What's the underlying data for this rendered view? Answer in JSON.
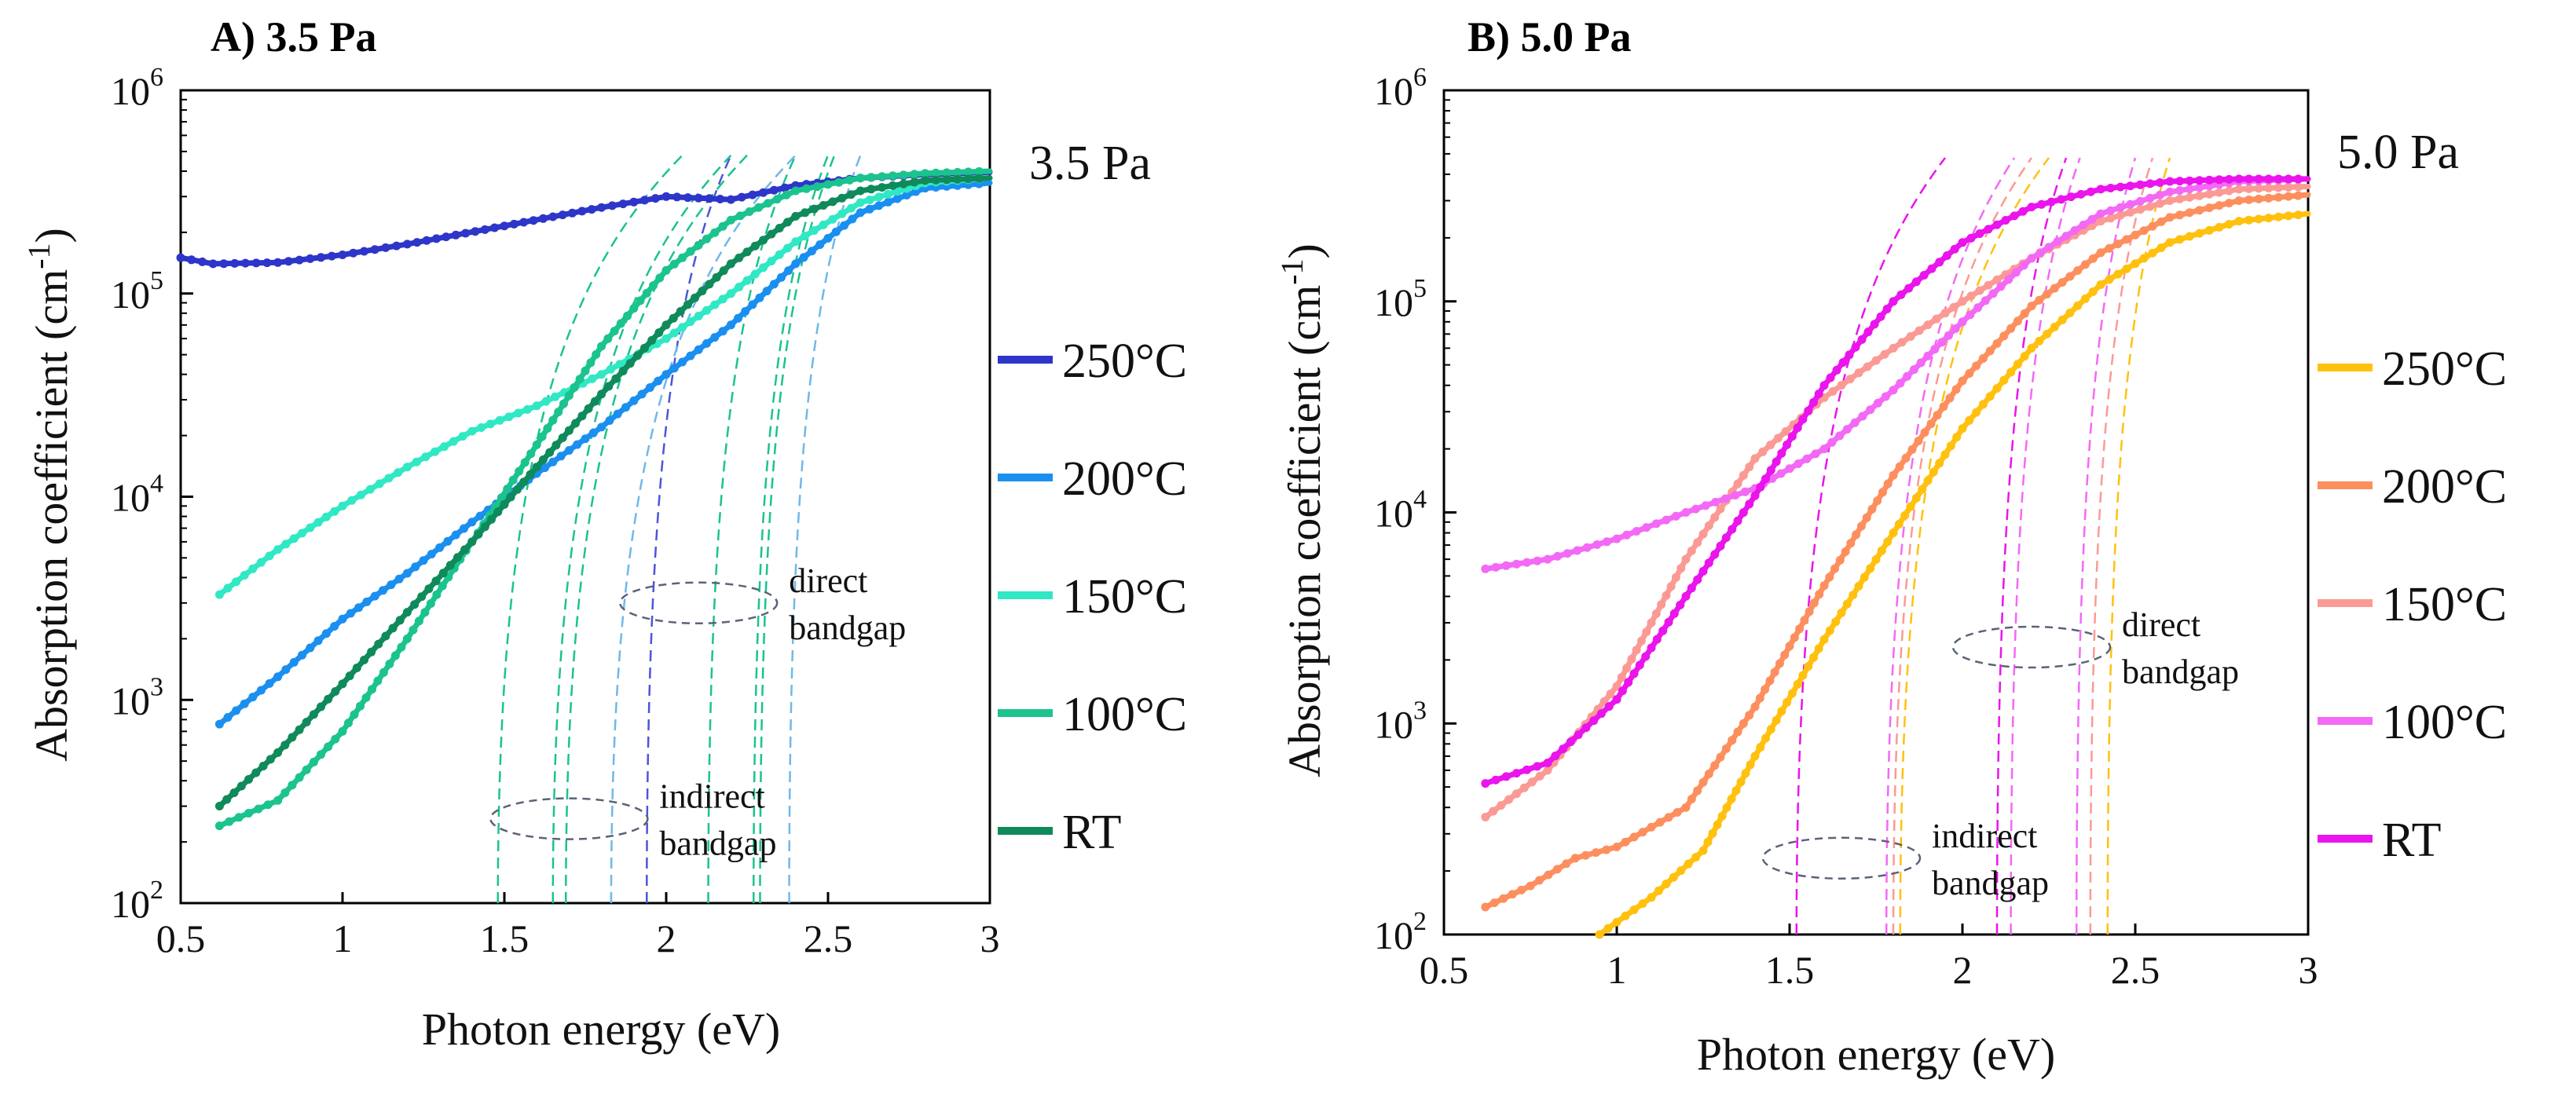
{
  "chart_data": [
    {
      "type": "line",
      "title": "A) 3.5 Pa",
      "pressure_label": "3.5 Pa",
      "xlabel": "Photon energy (eV)",
      "ylabel": "Absorption coefficient (cm",
      "ylabel_sup": "-1",
      "ylabel_close": ")",
      "xlim": [
        0.5,
        3
      ],
      "ylim": [
        100,
        1000000
      ],
      "yscale": "log",
      "x_ticks": [
        0.5,
        1,
        1.5,
        2,
        2.5,
        3
      ],
      "x_tick_labels": [
        "0.5",
        "1",
        "1.5",
        "2",
        "2.5",
        "3"
      ],
      "y_ticks": [
        100,
        1000,
        10000,
        100000,
        1000000
      ],
      "y_tick_base": "10",
      "y_tick_exps": [
        "2",
        "3",
        "4",
        "5",
        "6"
      ],
      "series": [
        {
          "name": "250°C",
          "color": "#2e35c9",
          "x": [
            0.5,
            0.6,
            0.8,
            1.0,
            1.2,
            1.5,
            1.8,
            2.0,
            2.2,
            2.4,
            2.6,
            2.8,
            3.0
          ],
          "y": [
            150000,
            140000,
            142000,
            155000,
            175000,
            215000,
            265000,
            300000,
            290000,
            340000,
            370000,
            385000,
            395000
          ]
        },
        {
          "name": "200°C",
          "color": "#1a8ff0",
          "x": [
            0.62,
            0.8,
            1.0,
            1.2,
            1.4,
            1.6,
            1.8,
            2.0,
            2.2,
            2.4,
            2.6,
            2.8,
            3.0
          ],
          "y": [
            760,
            1300,
            2500,
            4200,
            7500,
            13000,
            22000,
            40000,
            70000,
            140000,
            250000,
            330000,
            350000
          ]
        },
        {
          "name": "150°C",
          "color": "#30e8c4",
          "x": [
            0.62,
            0.8,
            1.0,
            1.2,
            1.4,
            1.6,
            1.8,
            2.0,
            2.2,
            2.4,
            2.6,
            2.8,
            3.0
          ],
          "y": [
            3300,
            5500,
            9000,
            14000,
            21000,
            28000,
            40000,
            60000,
            100000,
            180000,
            280000,
            350000,
            370000
          ]
        },
        {
          "name": "100°C",
          "color": "#1bc38e",
          "x": [
            0.62,
            0.8,
            1.0,
            1.2,
            1.4,
            1.6,
            1.8,
            2.0,
            2.2,
            2.4,
            2.6,
            2.8,
            3.0
          ],
          "y": [
            240,
            320,
            700,
            2000,
            6000,
            18000,
            55000,
            130000,
            230000,
            320000,
            370000,
            390000,
            400000
          ]
        },
        {
          "name": "RT",
          "color": "#0f8a5a",
          "x": [
            0.62,
            0.8,
            1.0,
            1.2,
            1.4,
            1.6,
            1.8,
            2.0,
            2.2,
            2.4,
            2.6,
            2.8,
            3.0
          ],
          "y": [
            300,
            550,
            1200,
            2700,
            6000,
            14000,
            32000,
            70000,
            140000,
            240000,
            320000,
            360000,
            370000
          ]
        }
      ],
      "fit_lines": [
        {
          "color": "#4b56d8",
          "x0": 1.94,
          "x1": 2.2
        },
        {
          "color": "#1bc38e",
          "x0": 2.13,
          "x1": 2.4
        },
        {
          "color": "#1bc38e",
          "x0": 2.27,
          "x1": 2.5
        },
        {
          "color": "#1bc38e",
          "x0": 2.29,
          "x1": 2.52
        },
        {
          "color": "#6fb8ea",
          "x0": 2.38,
          "x1": 2.6
        },
        {
          "color": "#1bc38e",
          "x0": 1.48,
          "x1": 2.05
        },
        {
          "color": "#1bc38e",
          "x0": 1.65,
          "x1": 2.2
        },
        {
          "color": "#1bc38e",
          "x0": 1.69,
          "x1": 2.25
        },
        {
          "color": "#6fb8ea",
          "x0": 1.83,
          "x1": 2.4
        }
      ],
      "annotations": {
        "direct": {
          "line1": "direct",
          "line2": "bandgap",
          "x": 2.1,
          "y": 3000
        },
        "indirect": {
          "line1": "indirect",
          "line2": "bandgap",
          "x": 1.7,
          "y": 260
        }
      }
    },
    {
      "type": "line",
      "title": "B) 5.0 Pa",
      "pressure_label": "5.0 Pa",
      "xlabel": "Photon energy (eV)",
      "ylabel": "Absorption coefficient (cm",
      "ylabel_sup": "-1",
      "ylabel_close": ")",
      "xlim": [
        0.5,
        3
      ],
      "ylim": [
        100,
        1000000
      ],
      "yscale": "log",
      "x_ticks": [
        0.5,
        1,
        1.5,
        2,
        2.5,
        3
      ],
      "x_tick_labels": [
        "0.5",
        "1",
        "1.5",
        "2",
        "2.5",
        "3"
      ],
      "y_ticks": [
        100,
        1000,
        10000,
        100000,
        1000000
      ],
      "y_tick_base": "10",
      "y_tick_exps": [
        "2",
        "3",
        "4",
        "5",
        "6"
      ],
      "series": [
        {
          "name": "250°C",
          "color": "#ffc10e",
          "x": [
            0.95,
            1.1,
            1.25,
            1.4,
            1.6,
            1.8,
            2.0,
            2.2,
            2.4,
            2.6,
            2.8,
            3.0
          ],
          "y": [
            100,
            150,
            250,
            700,
            2500,
            8000,
            25000,
            60000,
            120000,
            190000,
            240000,
            260000
          ]
        },
        {
          "name": "200°C",
          "color": "#fd8f5e",
          "x": [
            0.62,
            0.75,
            0.88,
            1.0,
            1.2,
            1.4,
            1.6,
            1.8,
            2.0,
            2.2,
            2.4,
            2.6,
            2.8,
            3.0
          ],
          "y": [
            135,
            170,
            230,
            260,
            400,
            1200,
            4500,
            15000,
            42000,
            95000,
            170000,
            250000,
            300000,
            320000
          ]
        },
        {
          "name": "150°C",
          "color": "#fb9a94",
          "x": [
            0.62,
            0.8,
            1.0,
            1.2,
            1.4,
            1.6,
            1.8,
            2.0,
            2.2,
            2.4,
            2.6,
            2.8,
            3.0
          ],
          "y": [
            360,
            600,
            1500,
            6000,
            18000,
            35000,
            60000,
            100000,
            160000,
            240000,
            300000,
            340000,
            350000
          ]
        },
        {
          "name": "100°C",
          "color": "#f369f5",
          "x": [
            0.62,
            0.8,
            1.0,
            1.2,
            1.4,
            1.6,
            1.8,
            2.0,
            2.2,
            2.4,
            2.6,
            2.8,
            3.0
          ],
          "y": [
            5400,
            6000,
            7500,
            10000,
            13000,
            20000,
            38000,
            80000,
            160000,
            260000,
            330000,
            370000,
            380000
          ]
        },
        {
          "name": "RT",
          "color": "#ea14ec",
          "x": [
            0.62,
            0.8,
            1.0,
            1.2,
            1.4,
            1.6,
            1.8,
            2.0,
            2.2,
            2.4,
            2.6,
            2.8,
            3.0
          ],
          "y": [
            520,
            650,
            1300,
            4000,
            12000,
            40000,
            100000,
            190000,
            280000,
            340000,
            370000,
            380000,
            380000
          ]
        }
      ],
      "fit_lines": [
        {
          "color": "#ea14ec",
          "x0": 2.1,
          "x1": 2.3
        },
        {
          "color": "#f369f5",
          "x0": 2.14,
          "x1": 2.34
        },
        {
          "color": "#f369f5",
          "x0": 2.33,
          "x1": 2.5
        },
        {
          "color": "#fb9a94",
          "x0": 2.37,
          "x1": 2.55
        },
        {
          "color": "#ffc10e",
          "x0": 2.42,
          "x1": 2.6
        },
        {
          "color": "#ea14ec",
          "x0": 1.52,
          "x1": 1.95
        },
        {
          "color": "#f369f5",
          "x0": 1.78,
          "x1": 2.15
        },
        {
          "color": "#fb9a94",
          "x0": 1.8,
          "x1": 2.2
        },
        {
          "color": "#ffc10e",
          "x0": 1.82,
          "x1": 2.25
        }
      ],
      "annotations": {
        "direct": {
          "line1": "direct",
          "line2": "bandgap",
          "x": 2.2,
          "y": 2300
        },
        "indirect": {
          "line1": "indirect",
          "line2": "bandgap",
          "x": 1.65,
          "y": 230
        }
      }
    }
  ]
}
